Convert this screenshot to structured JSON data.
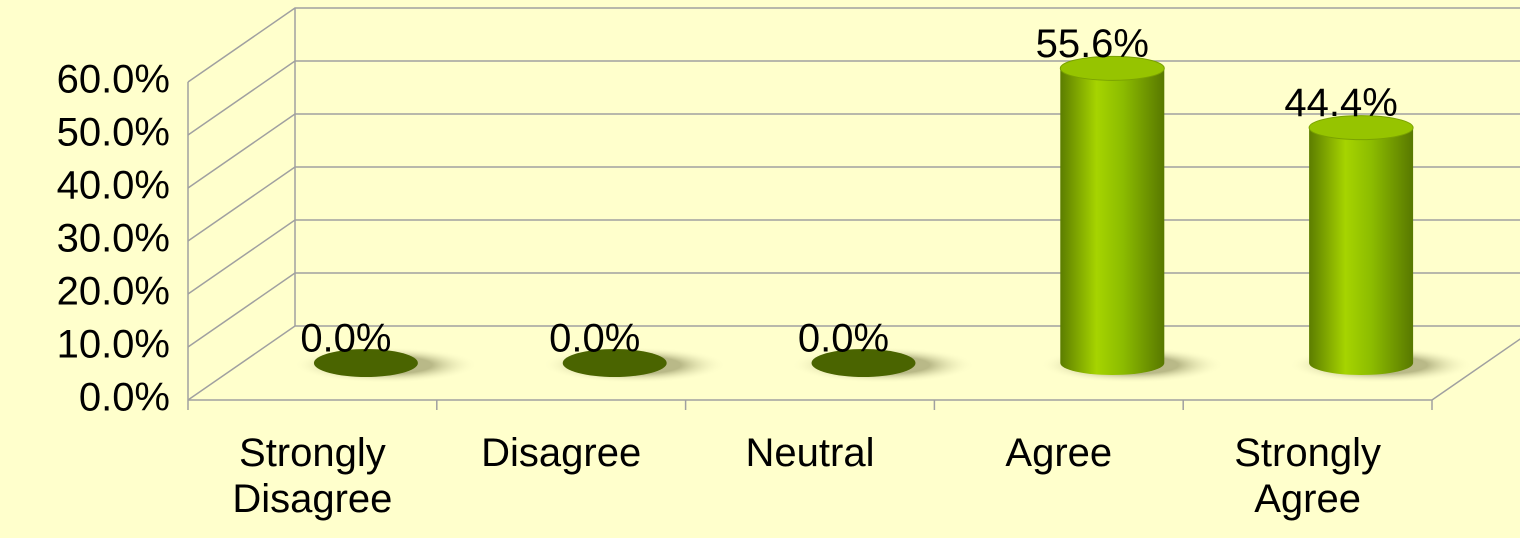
{
  "chart_data": {
    "type": "bar3d",
    "categories": [
      "Strongly Disagree",
      "Disagree",
      "Neutral",
      "Agree",
      "Strongly Agree"
    ],
    "values": [
      0,
      0,
      0,
      55.6,
      44.4
    ],
    "value_labels": [
      "0.0%",
      "0.0%",
      "0.0%",
      "55.6%",
      "44.4%"
    ],
    "color": "#8fbf00",
    "ylim": [
      0,
      60
    ],
    "yticks": [
      {
        "value": 0,
        "label": "0.0%"
      },
      {
        "value": 10,
        "label": "10.0%"
      },
      {
        "value": 20,
        "label": "20.0%"
      },
      {
        "value": 30,
        "label": "30.0%"
      },
      {
        "value": 40,
        "label": "40.0%"
      },
      {
        "value": 50,
        "label": "50.0%"
      },
      {
        "value": 60,
        "label": "60.0%"
      }
    ],
    "grid": true
  }
}
